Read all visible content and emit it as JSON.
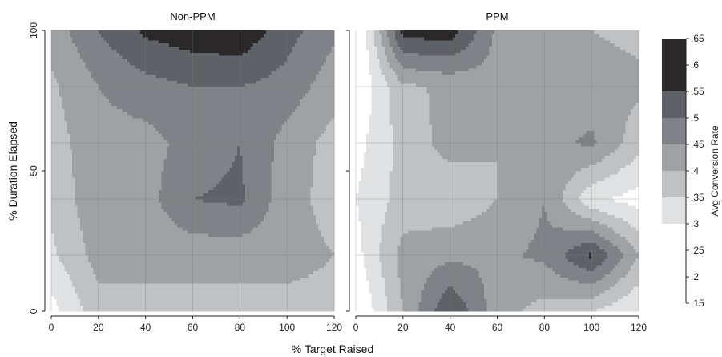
{
  "chart_data": {
    "type": "heatmap",
    "subtype": "filled-contour",
    "panels": [
      {
        "title": "Non-PPM",
        "x": [
          0,
          20,
          40,
          60,
          80,
          100,
          120
        ],
        "y": [
          0,
          20,
          40,
          60,
          80,
          100
        ],
        "z": [
          [
            0.28,
            0.38,
            0.38,
            0.38,
            0.38,
            0.38,
            0.38
          ],
          [
            0.34,
            0.42,
            0.42,
            0.42,
            0.42,
            0.42,
            0.4
          ],
          [
            0.36,
            0.44,
            0.43,
            0.5,
            0.51,
            0.42,
            0.38
          ],
          [
            0.38,
            0.43,
            0.43,
            0.47,
            0.5,
            0.43,
            0.38
          ],
          [
            0.39,
            0.45,
            0.48,
            0.5,
            0.5,
            0.48,
            0.42
          ],
          [
            0.42,
            0.5,
            0.56,
            0.58,
            0.59,
            0.52,
            0.46
          ]
        ]
      },
      {
        "title": "PPM",
        "x": [
          0,
          20,
          40,
          60,
          80,
          100,
          120
        ],
        "y": [
          0,
          20,
          40,
          60,
          80,
          100
        ],
        "z": [
          [
            0.24,
            0.4,
            0.55,
            0.42,
            0.38,
            0.35,
            0.3
          ],
          [
            0.28,
            0.42,
            0.44,
            0.44,
            0.46,
            0.56,
            0.4
          ],
          [
            0.3,
            0.37,
            0.36,
            0.4,
            0.45,
            0.31,
            0.28
          ],
          [
            0.28,
            0.37,
            0.42,
            0.4,
            0.43,
            0.46,
            0.37
          ],
          [
            0.25,
            0.39,
            0.41,
            0.43,
            0.43,
            0.42,
            0.41
          ],
          [
            0.22,
            0.57,
            0.58,
            0.44,
            0.42,
            0.4,
            0.39
          ]
        ]
      }
    ],
    "xlabel": "% Target Raised",
    "ylabel": "% Duration Elapsed",
    "x_ticks": [
      0,
      20,
      40,
      60,
      80,
      100,
      120
    ],
    "y_ticks": [
      0,
      50,
      100
    ],
    "xlim": [
      0,
      120
    ],
    "ylim": [
      0,
      100
    ],
    "grid": true,
    "legend": {
      "title": "Avg Conversion Rate",
      "position": "right",
      "levels": [
        0.15,
        0.2,
        0.25,
        0.3,
        0.35,
        0.4,
        0.45,
        0.5,
        0.55,
        0.6,
        0.65
      ],
      "tick_labels": [
        ".15",
        ".2",
        ".25",
        ".3",
        ".35",
        ".4",
        ".45",
        ".5",
        ".55",
        ".6",
        ".65"
      ],
      "band_edges": [
        0.15,
        0.3,
        0.35,
        0.4,
        0.45,
        0.5,
        0.55,
        0.65
      ],
      "band_colors": [
        "#ffffff",
        "#dfe1e2",
        "#bfc1c3",
        "#9fa2a5",
        "#7f8387",
        "#5e6267",
        "#2a2828"
      ]
    }
  }
}
